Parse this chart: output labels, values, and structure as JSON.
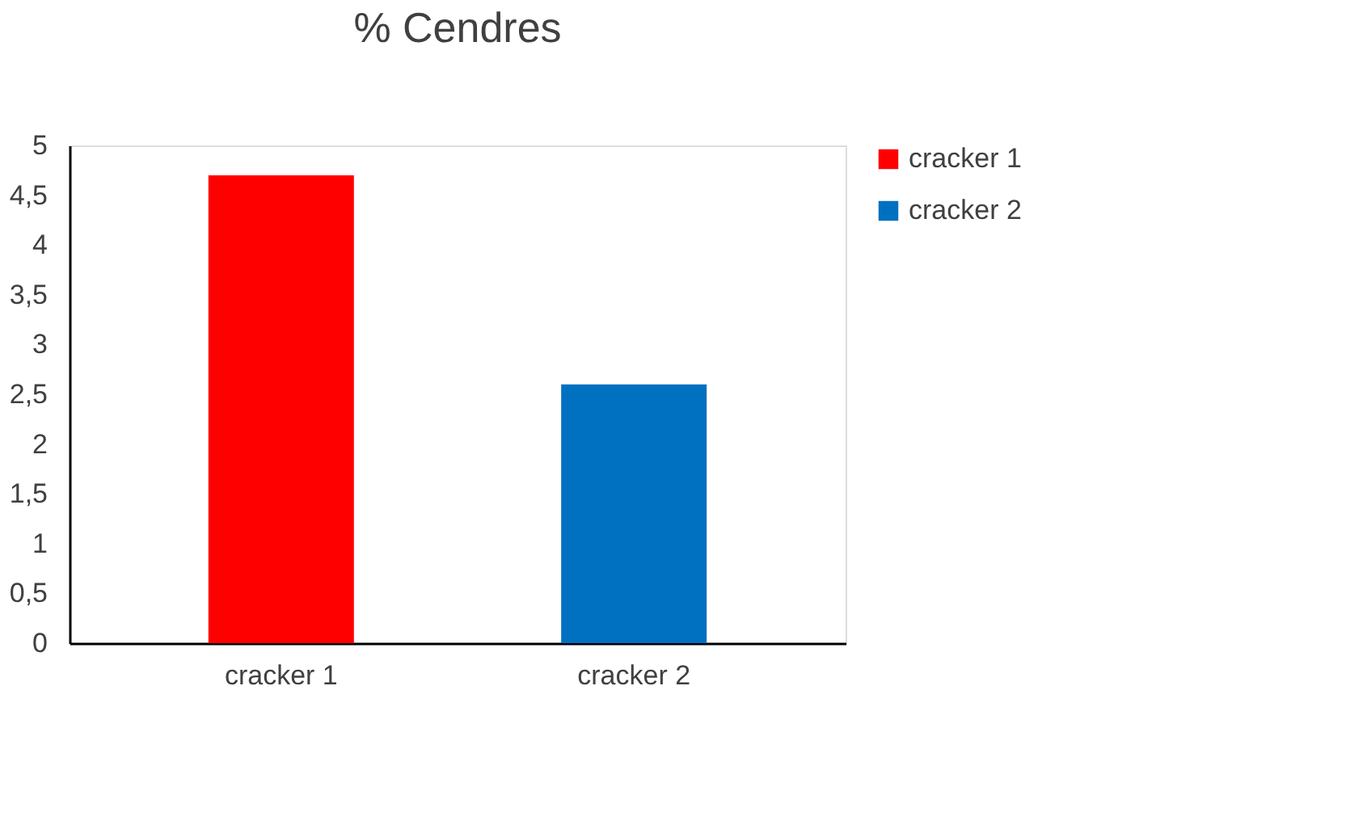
{
  "chart_data": {
    "type": "bar",
    "title": "% Cendres",
    "categories": [
      "cracker 1",
      "cracker 2"
    ],
    "series": [
      {
        "name": "cracker 1",
        "color": "#ff0000",
        "values": [
          4.7,
          null
        ]
      },
      {
        "name": "cracker 2",
        "color": "#0070c0",
        "values": [
          null,
          2.6
        ]
      }
    ],
    "ylim": [
      0,
      5
    ],
    "yticks": [
      0,
      {
        "value": 0.5,
        "label": "0,5"
      },
      1,
      {
        "value": 1.5,
        "label": "1,5"
      },
      2,
      {
        "value": 2.5,
        "label": "2,5"
      },
      3,
      {
        "value": 3.5,
        "label": "3,5"
      },
      4,
      {
        "value": 4.5,
        "label": "4,5"
      },
      5
    ],
    "grid": false,
    "legend": "right"
  }
}
